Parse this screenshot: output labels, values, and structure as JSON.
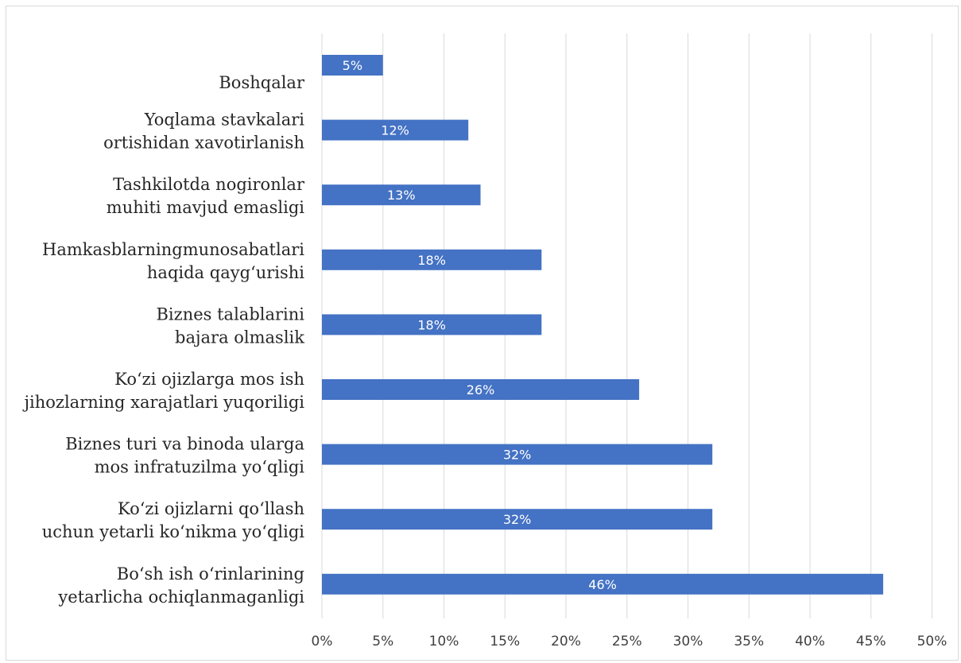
{
  "chart_data": {
    "type": "bar",
    "orientation": "horizontal",
    "categories": [
      [
        "Boshqalar"
      ],
      [
        "Yoqlama stavkalari",
        "ortishidan xavotirlanish"
      ],
      [
        "Tashkilotda nogironlar",
        "muhiti mavjud emasligi"
      ],
      [
        "Hamkasblarningmunosabatlari",
        "haqida qayg‘urishi"
      ],
      [
        "Biznes talablarini",
        "bajara olmaslik"
      ],
      [
        "Ko‘zi ojizlarga mos ish",
        "jihozlarning xarajatlari yuqoriligi"
      ],
      [
        "Biznes turi va binoda ularga",
        "mos infratuzilma yo‘qligi"
      ],
      [
        "Ko‘zi ojizlarni qo‘llash",
        "uchun yetarli ko‘nikma yo‘qligi"
      ],
      [
        "Bo‘sh ish o‘rinlarining",
        "yetarlicha ochiqlanmaganligi"
      ]
    ],
    "values": [
      5,
      12,
      13,
      18,
      18,
      26,
      32,
      32,
      46
    ],
    "data_labels": [
      "5%",
      "12%",
      "13%",
      "18%",
      "18%",
      "26%",
      "32%",
      "32%",
      "46%"
    ],
    "x_ticks": [
      "0%",
      "5%",
      "10%",
      "15%",
      "20%",
      "25%",
      "30%",
      "35%",
      "40%",
      "45%",
      "50%"
    ],
    "xlim": [
      0,
      50
    ],
    "grid": true,
    "legend": "none",
    "bar_color": "#4472c4",
    "grid_color": "#d9d9d9"
  }
}
